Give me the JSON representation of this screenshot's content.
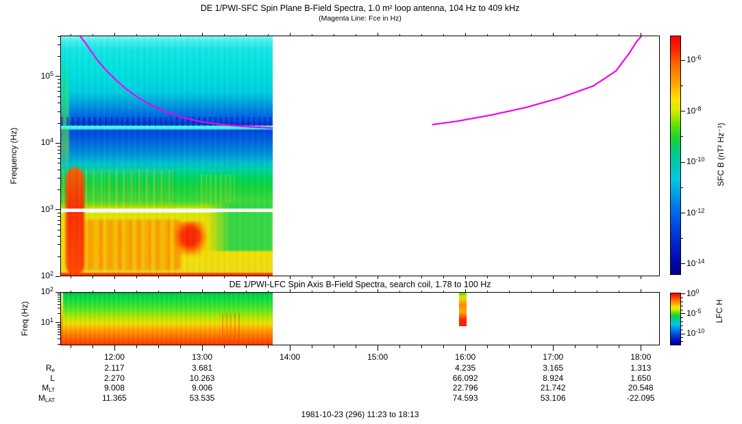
{
  "caption": "1981-10-23 (296) 11:23 to 18:13",
  "plot_colors": {
    "background": "#FFFFFF",
    "frame": "#000000",
    "fce_magenta": "#F000F0",
    "cyan_emission_line": "#3FF8F8"
  },
  "xaxis": {
    "start_time": "11:23",
    "end_time": "18:13",
    "start_min": 683,
    "end_min": 1093,
    "minor_step_min": 15,
    "hour_labels": [
      "12:00",
      "13:00",
      "14:00",
      "15:00",
      "16:00",
      "17:00",
      "18:00"
    ]
  },
  "chart_data": [
    {
      "type": "heatmap",
      "title": "DE 1/PWI-SFC  Spin Plane B-Field Spectra, 1.0 m² loop antenna, 104 Hz to 409 kHz",
      "subtitle": "(Magenta Line: Fce in Hz)",
      "ylabel": "Frequency (Hz)",
      "yaxis": {
        "scale": "log",
        "top_hz": 409000,
        "bottom_hz": 100,
        "top_exp": 5.6117,
        "bottom_exp": 2.0,
        "labeled_decades": [
          5,
          4,
          3,
          2
        ]
      },
      "colorbar": {
        "label": "SFC B (nT² Hz⁻¹)",
        "top_exp": -5.03,
        "bottom_exp": -14.43,
        "labeled_decades": [
          -6,
          -8,
          -10,
          -12,
          -14
        ],
        "stops": [
          [
            0,
            "#FA0000"
          ],
          [
            6,
            "#FF2A00"
          ],
          [
            12,
            "#FF6A00"
          ],
          [
            20,
            "#FFA600"
          ],
          [
            26,
            "#FFE000"
          ],
          [
            31,
            "#D8EC00"
          ],
          [
            36,
            "#7CE400"
          ],
          [
            42,
            "#22D428"
          ],
          [
            48,
            "#00CC7A"
          ],
          [
            54,
            "#00C8B6"
          ],
          [
            60,
            "#00C8E0"
          ],
          [
            66,
            "#00A0E4"
          ],
          [
            73,
            "#0070E8"
          ],
          [
            80,
            "#0048E0"
          ],
          [
            88,
            "#0020C8"
          ],
          [
            95,
            "#0008A8"
          ],
          [
            100,
            "#000090"
          ]
        ]
      },
      "data_coverage": {
        "start": "11:23",
        "end": "13:48",
        "note": "white (no data) from ~13:48 to 18:13"
      },
      "fce_line_color": "#F000F0",
      "fce_left_segment": [
        [
          28,
          0
        ],
        [
          36,
          10
        ],
        [
          44,
          22
        ],
        [
          54,
          36
        ],
        [
          66,
          50
        ],
        [
          80,
          64
        ],
        [
          96,
          78
        ],
        [
          114,
          91
        ],
        [
          134,
          102
        ],
        [
          156,
          112
        ],
        [
          180,
          120
        ],
        [
          207,
          126
        ],
        [
          237,
          130
        ],
        [
          272,
          133
        ],
        [
          310,
          135
        ]
      ],
      "fce_right_segment": [
        [
          543,
          130
        ],
        [
          579,
          125
        ],
        [
          629,
          116
        ],
        [
          679,
          105
        ],
        [
          729,
          91
        ],
        [
          779,
          73
        ],
        [
          812,
          51
        ],
        [
          832,
          24
        ],
        [
          842,
          8
        ],
        [
          849,
          0
        ]
      ],
      "spectrum_bands": [
        [
          0,
          "#7DF4F4"
        ],
        [
          2,
          "#4AECEC"
        ],
        [
          6,
          "#12E4E4"
        ],
        [
          16,
          "#00DEDE"
        ],
        [
          23,
          "#00CEE0"
        ],
        [
          27,
          "#00AADC"
        ],
        [
          31,
          "#0080E0"
        ],
        [
          34.5,
          "#005AE8"
        ],
        [
          37,
          "#0038D0"
        ],
        [
          37.6,
          "#36F2FF"
        ],
        [
          38.6,
          "#36F2FF"
        ],
        [
          39.3,
          "#0046D8"
        ],
        [
          43,
          "#005CDE"
        ],
        [
          49,
          "#0090D8"
        ],
        [
          53,
          "#00BECC"
        ],
        [
          56,
          "#00D2A0"
        ],
        [
          59,
          "#00D45C"
        ],
        [
          63,
          "#16D23E"
        ],
        [
          69,
          "#3CD83A"
        ],
        [
          71,
          "#96DE0C"
        ],
        [
          71.9,
          "#C8E400"
        ],
        [
          72.2,
          "#FFFFFF"
        ],
        [
          73.3,
          "#FFFFFF"
        ],
        [
          74,
          "#D4E800"
        ],
        [
          77,
          "#EDE00A"
        ],
        [
          88,
          "#F2DE00"
        ],
        [
          97,
          "#F0DC14"
        ],
        [
          98.6,
          "#ECD51E"
        ],
        [
          99.1,
          "#FF4400"
        ],
        [
          100,
          "#E83000"
        ]
      ],
      "features": [
        "magenta electron cyclotron frequency (Fce) trace in two segments with gap near perigee",
        "narrowband cyan emission line near 16 kHz",
        "intense broadband red/orange emission below ~1 kHz early in pass",
        "white horizontal stripe at 1 kHz",
        "cyan/blue weak background above 2 kHz"
      ]
    },
    {
      "type": "heatmap",
      "title": "DE 1/PWI-LFC  Spin Axis B-Field Spectra, search coil, 1.78 to 100 Hz",
      "ylabel": "Freq (Hz)",
      "yaxis": {
        "scale": "log",
        "top_hz": 100,
        "bottom_hz": 1.78,
        "top_exp": 2.0,
        "bottom_exp": 0.2504,
        "labeled_decades": [
          2,
          1
        ]
      },
      "colorbar": {
        "label": "LFC H",
        "top_exp": 0.3,
        "bottom_exp": -12.9,
        "labeled_decades": [
          0,
          -5,
          -10
        ],
        "stops": [
          [
            0,
            "#FA0000"
          ],
          [
            6,
            "#FF2A00"
          ],
          [
            12,
            "#FF6A00"
          ],
          [
            20,
            "#FFA600"
          ],
          [
            26,
            "#FFE000"
          ],
          [
            31,
            "#D8EC00"
          ],
          [
            36,
            "#7CE400"
          ],
          [
            42,
            "#22D428"
          ],
          [
            48,
            "#00CC7A"
          ],
          [
            54,
            "#00C8B6"
          ],
          [
            60,
            "#00C8E0"
          ],
          [
            66,
            "#00A0E4"
          ],
          [
            73,
            "#0070E8"
          ],
          [
            80,
            "#0048E0"
          ],
          [
            88,
            "#0020C8"
          ],
          [
            95,
            "#0008A8"
          ],
          [
            100,
            "#000090"
          ]
        ]
      },
      "data_coverage": {
        "start": "11:23",
        "end": "13:48"
      },
      "spectrum_bands": [
        [
          0,
          "#00B23C"
        ],
        [
          5,
          "#00D848"
        ],
        [
          16,
          "#1CDC3A"
        ],
        [
          27,
          "#40E22C"
        ],
        [
          36,
          "#6EE61A"
        ],
        [
          44,
          "#9EE60A"
        ],
        [
          52,
          "#CCE400"
        ],
        [
          60,
          "#EEDC00"
        ],
        [
          67,
          "#FFB200"
        ],
        [
          77,
          "#FF8A00"
        ],
        [
          87,
          "#FF6600"
        ],
        [
          94,
          "#FF4E00"
        ],
        [
          100,
          "#FF3800"
        ]
      ],
      "burst_column": {
        "time": "15:57",
        "stops": [
          [
            0,
            "#44E000"
          ],
          [
            14,
            "#F0E000"
          ],
          [
            38,
            "#FF8800"
          ],
          [
            58,
            "#FFAA00"
          ],
          [
            80,
            "#FF2200"
          ],
          [
            100,
            "#FF2200"
          ]
        ]
      },
      "features": [
        "banded spectrum, intensity increasing toward low frequency (red at bottom)",
        "isolated burst column near 15:57 in upper frequencies"
      ]
    }
  ],
  "ephemeris": {
    "rows": [
      {
        "label": "R",
        "sub": "e",
        "values": [
          "2.117",
          "3.681",
          "",
          "",
          "4.235",
          "3.165",
          "1.313"
        ]
      },
      {
        "label": "L",
        "sub": "",
        "values": [
          "2.270",
          "10.263",
          "",
          "",
          "66.092",
          "8.924",
          "1.650"
        ]
      },
      {
        "label": "M",
        "sub": "LT",
        "values": [
          "9.008",
          "9.006",
          "",
          "",
          "22.796",
          "21.742",
          "20.548"
        ]
      },
      {
        "label": "M",
        "sub": "LAT",
        "values": [
          "11.365",
          "53.535",
          "",
          "",
          "74.593",
          "53.106",
          "-22.095"
        ]
      }
    ]
  }
}
